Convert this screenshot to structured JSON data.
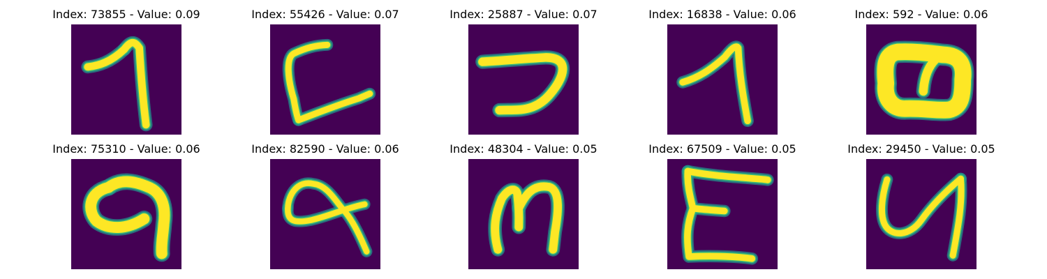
{
  "chart_data": {
    "type": "image-grid",
    "rows": 2,
    "cols": 5,
    "colors": {
      "background": "#440154",
      "stroke_core": "#fde725",
      "stroke_edge": "#35b779",
      "stroke_halo": "#21918c"
    },
    "panels": [
      {
        "title": "Index: 73855 - Value: 0.09",
        "glyph": "seven"
      },
      {
        "title": "Index: 55426 - Value: 0.07",
        "glyph": "letter-c-bracket"
      },
      {
        "title": "Index: 25887 - Value: 0.07",
        "glyph": "reversed-c"
      },
      {
        "title": "Index: 16838 - Value: 0.06",
        "glyph": "one"
      },
      {
        "title": "Index: 592 - Value: 0.06",
        "glyph": "double-loop"
      },
      {
        "title": "Index: 75310 - Value: 0.06",
        "glyph": "nine"
      },
      {
        "title": "Index: 82590 - Value: 0.06",
        "glyph": "alpha-loop"
      },
      {
        "title": "Index: 48304 - Value: 0.05",
        "glyph": "letter-m"
      },
      {
        "title": "Index: 67509 - Value: 0.05",
        "glyph": "letter-e"
      },
      {
        "title": "Index: 29450 - Value: 0.05",
        "glyph": "letter-u"
      }
    ]
  }
}
